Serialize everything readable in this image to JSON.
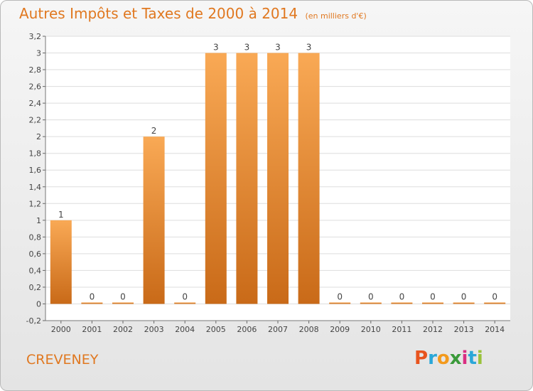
{
  "title": "Autres Impôts et Taxes de 2000 à 2014",
  "subtitle": "(en milliers d'€)",
  "place": "CREVENEY",
  "brand": {
    "letters": [
      "P",
      "r",
      "o",
      "x",
      "i",
      "t",
      "i"
    ],
    "colors": [
      "#e8541e",
      "#2aa7d8",
      "#f39a1d",
      "#3a9a3a",
      "#d92e82",
      "#2aa7d8",
      "#9ac23c"
    ]
  },
  "colors": {
    "accent": "#e07820",
    "bar_top": "#f9a955",
    "bar_bottom": "#c96a18"
  },
  "chart_data": {
    "type": "bar",
    "categories": [
      "2000",
      "2001",
      "2002",
      "2003",
      "2004",
      "2005",
      "2006",
      "2007",
      "2008",
      "2009",
      "2010",
      "2011",
      "2012",
      "2013",
      "2014"
    ],
    "values": [
      1,
      0,
      0,
      2,
      0,
      3,
      3,
      3,
      3,
      0,
      0,
      0,
      0,
      0,
      0
    ],
    "data_labels": [
      "1",
      "0",
      "0",
      "2",
      "0",
      "3",
      "3",
      "3",
      "3",
      "0",
      "0",
      "0",
      "0",
      "0",
      "0"
    ],
    "ylim": [
      -0.2,
      3.2
    ],
    "yticks": [
      -0.2,
      0,
      0.2,
      0.4,
      0.6,
      0.8,
      1,
      1.2,
      1.4,
      1.6,
      1.8,
      2,
      2.2,
      2.4,
      2.6,
      2.8,
      3,
      3.2
    ],
    "ytick_labels": [
      "-0,2",
      "0",
      "0,2",
      "0,4",
      "0,6",
      "0,8",
      "1",
      "1,2",
      "1,4",
      "1,6",
      "1,8",
      "2",
      "2,2",
      "2,4",
      "2,6",
      "2,8",
      "3",
      "3,2"
    ],
    "grid": true
  }
}
